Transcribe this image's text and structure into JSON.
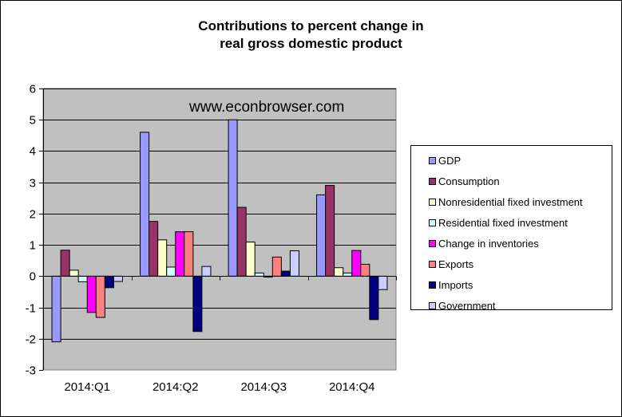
{
  "chart_data": {
    "type": "bar",
    "title_lines": [
      "Contributions to percent change in",
      "real gross domestic product"
    ],
    "annotation": "www.econbrowser.com",
    "categories": [
      "2014:Q1",
      "2014:Q2",
      "2014:Q3",
      "2014:Q4"
    ],
    "ylim": [
      -3,
      6
    ],
    "yticks": [
      -3,
      -2,
      -1,
      0,
      1,
      2,
      3,
      4,
      5,
      6
    ],
    "grid": true,
    "legend_position": "right",
    "plot_background": "#c0c0c0",
    "series": [
      {
        "name": "GDP",
        "color": "#9999ff",
        "values": [
          -2.1,
          4.6,
          5.0,
          2.6
        ]
      },
      {
        "name": "Consumption",
        "color": "#993366",
        "values": [
          0.83,
          1.75,
          2.2,
          2.9
        ]
      },
      {
        "name": "Nonresidential fixed investment",
        "color": "#ffffcc",
        "values": [
          0.19,
          1.16,
          1.09,
          0.27
        ]
      },
      {
        "name": "Residential fixed investment",
        "color": "#ccffff",
        "values": [
          -0.18,
          0.29,
          0.1,
          0.1
        ]
      },
      {
        "name": "Change in inventories",
        "color": "#ff00ff",
        "values": [
          -1.16,
          1.42,
          -0.03,
          0.82
        ]
      },
      {
        "name": "Exports",
        "color": "#ff8080",
        "values": [
          -1.32,
          1.42,
          0.61,
          0.38
        ]
      },
      {
        "name": "Imports",
        "color": "#000080",
        "values": [
          -0.37,
          -1.77,
          0.16,
          -1.39
        ]
      },
      {
        "name": "Government",
        "color": "#ccccff",
        "values": [
          -0.17,
          0.31,
          0.81,
          -0.43
        ]
      }
    ]
  }
}
